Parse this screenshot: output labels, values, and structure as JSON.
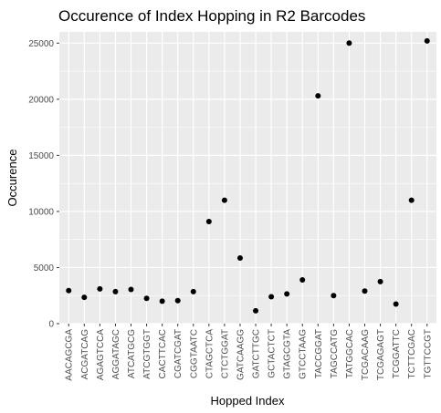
{
  "chart_data": {
    "type": "scatter",
    "title": "Occurence of Index Hopping in R2 Barcodes",
    "xlabel": "Hopped Index",
    "ylabel": "Occurence",
    "ylim": [
      0,
      26000
    ],
    "yticks": [
      0,
      5000,
      10000,
      15000,
      20000,
      25000
    ],
    "ytick_labels": [
      "0",
      "5000",
      "10000",
      "15000",
      "20000",
      "25000"
    ],
    "grid": true,
    "panel_color": "#ebebeb",
    "grid_color": "#ffffff",
    "point_color": "#000000",
    "categories": [
      "AACAGCGA",
      "ACGATCAG",
      "AGAGTCCA",
      "AGGATAGC",
      "ATCATGCG",
      "ATCGTGGT",
      "CACTTCAC",
      "CGATCGAT",
      "CGGTAATC",
      "CTAGCTCA",
      "CTCTGGAT",
      "GATCAAGG",
      "GATCTTGC",
      "GCTACTCT",
      "GTAGCGTA",
      "GTCCTAAG",
      "TACCGGAT",
      "TAGCCATG",
      "TATGGCAC",
      "TCGACAAG",
      "TCGAGAGT",
      "TCGGATTC",
      "TCTTCGAC",
      "TGTTCCGT"
    ],
    "values": [
      2950,
      2350,
      3100,
      2850,
      3050,
      2250,
      2000,
      2050,
      2850,
      9100,
      11000,
      5850,
      1150,
      2400,
      2650,
      3900,
      20300,
      2500,
      25000,
      2900,
      3750,
      1750,
      11000,
      25200
    ]
  }
}
